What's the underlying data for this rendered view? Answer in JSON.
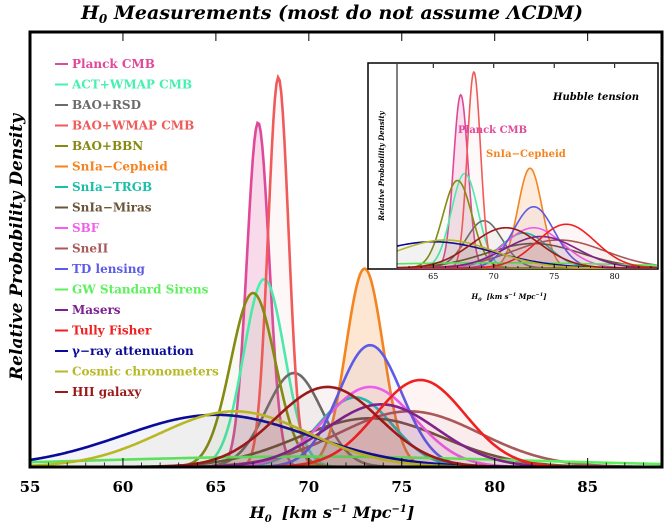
{
  "chart_data": {
    "type": "line",
    "title": "H0 Measurements (most do not assume ΛCDM)",
    "title_main": "H",
    "title_sub": "0",
    "title_rest": " Measurements (most do not assume ΛCDM)",
    "xlabel_main": "H",
    "xlabel_sub": "0",
    "xlabel_rest": "[km s",
    "xlabel_sup1": "−1",
    "xlabel_mid": " Mpc",
    "xlabel_sup2": "−1",
    "xlabel_end": "]",
    "ylabel": "Relative Probability Density",
    "xlim": [
      55,
      89
    ],
    "xticks": [
      "55",
      "60",
      "65",
      "70",
      "75",
      "80",
      "85"
    ],
    "legend_position": "top-left",
    "series": [
      {
        "name": "Planck CMB",
        "color": "#e0489a",
        "mean": 67.27,
        "sigma": 0.6,
        "peak": 0.99,
        "fill": true
      },
      {
        "name": "ACT+WMAP CMB",
        "color": "#46f0b0",
        "mean": 67.6,
        "sigma": 1.1,
        "peak": 0.54
      },
      {
        "name": "BAO+RSD",
        "color": "#6b6b6b",
        "mean": 69.2,
        "sigma": 1.5,
        "peak": 0.27
      },
      {
        "name": "BAO+WMAP CMB",
        "color": "#f05a5a",
        "mean": 68.36,
        "sigma": 0.55,
        "peak": 1.12
      },
      {
        "name": "BAO+BBN",
        "color": "#858a10",
        "mean": 67.0,
        "sigma": 1.2,
        "peak": 0.5
      },
      {
        "name": "SnIa−Cepheid",
        "color": "#f5831f",
        "mean": 73.0,
        "sigma": 1.0,
        "peak": 0.57,
        "fill": true
      },
      {
        "name": "SnIa−TRGB",
        "color": "#1abfa9",
        "mean": 72.5,
        "sigma": 2.0,
        "peak": 0.2
      },
      {
        "name": "SnIa−Miras",
        "color": "#6b5538",
        "mean": 73.3,
        "sigma": 3.9,
        "peak": 0.14
      },
      {
        "name": "SBF",
        "color": "#f25ef0",
        "mean": 73.3,
        "sigma": 2.4,
        "peak": 0.23
      },
      {
        "name": "SneII",
        "color": "#a85a5a",
        "mean": 75.4,
        "sigma": 3.8,
        "peak": 0.16
      },
      {
        "name": "TD lensing",
        "color": "#5c5ce8",
        "mean": 73.3,
        "sigma": 1.7,
        "peak": 0.35
      },
      {
        "name": "GW Standard Sirens",
        "color": "#5df05d",
        "mean": 70.0,
        "sigma": 12.0,
        "peak": 0.03
      },
      {
        "name": "Masers",
        "color": "#7a2290",
        "mean": 73.9,
        "sigma": 3.0,
        "peak": 0.18
      },
      {
        "name": "Tully Fisher",
        "color": "#f02020",
        "mean": 76.0,
        "sigma": 2.4,
        "peak": 0.25
      },
      {
        "name": "γ−ray attenuation",
        "color": "#0a0a9a",
        "mean": 65.0,
        "sigma": 5.0,
        "peak": 0.15
      },
      {
        "name": "Cosmic chronometers",
        "color": "#b8b824",
        "mean": 66.0,
        "sigma": 4.0,
        "peak": 0.16
      },
      {
        "name": "HII galaxy",
        "color": "#9a1a1a",
        "mean": 71.0,
        "sigma": 2.8,
        "peak": 0.23
      }
    ],
    "inset": {
      "annotation": "Hubble tension",
      "label_planck": "Planck CMB",
      "label_cepheid": "SnIa−Cepheid",
      "xlabel_main": "H",
      "xlabel_sub": "0",
      "xlabel_rest": "[km s",
      "xlabel_sup1": "−1",
      "xlabel_mid": " Mpc",
      "xlabel_sup2": "−1",
      "xlabel_end": "]",
      "ylabel": "Relative Probability Density",
      "xlim": [
        62,
        83.5
      ],
      "xticks": [
        "65",
        "70",
        "75",
        "80"
      ]
    }
  }
}
